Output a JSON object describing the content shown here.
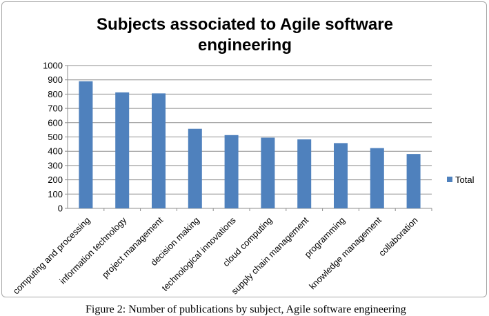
{
  "chart_data": {
    "type": "bar",
    "title": "Subjects associated to Agile software engineering",
    "title_lines": [
      "Subjects associated to Agile software",
      "engineering"
    ],
    "categories": [
      "computing and processing",
      "information technology",
      "project management",
      "decision making",
      "technological innovations",
      "cloud computing",
      "supply chain management",
      "programming",
      "knowledge management",
      "collaboration"
    ],
    "series": [
      {
        "name": "Total",
        "values": [
          890,
          812,
          805,
          557,
          513,
          495,
          483,
          457,
          422,
          381
        ],
        "color": "#4f81bd"
      }
    ],
    "yticks": [
      0,
      100,
      200,
      300,
      400,
      500,
      600,
      700,
      800,
      900,
      1000
    ],
    "ylim": [
      0,
      1000
    ],
    "xlabel": "",
    "ylabel": "",
    "grid": true,
    "legend_position": "right"
  },
  "caption": "Figure 2: Number of publications by subject, Agile software engineering"
}
